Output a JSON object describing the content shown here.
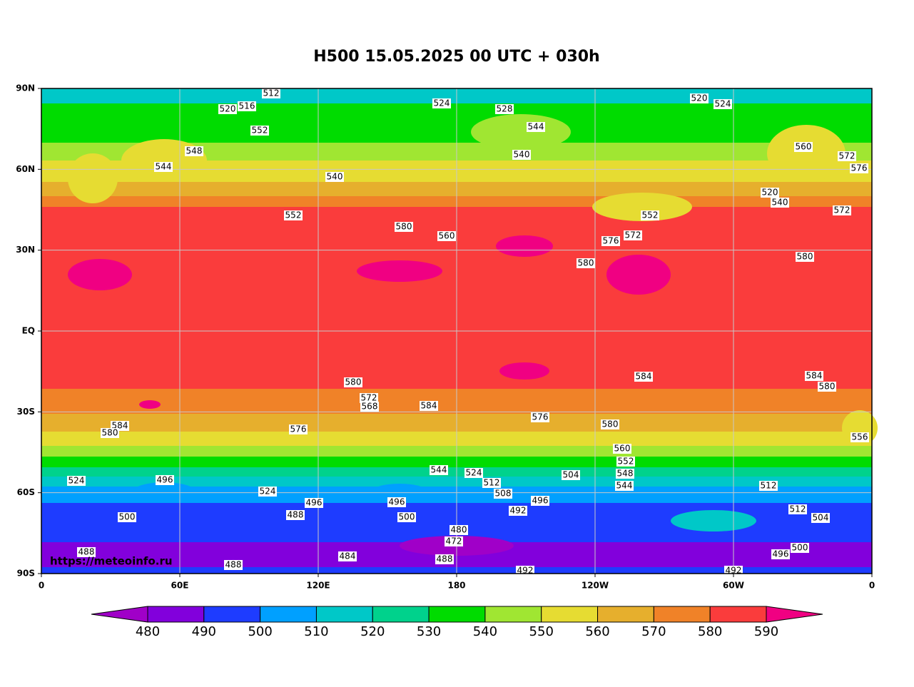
{
  "title": "H500  15.05.2025 00 UTC + 030h",
  "watermark": "https://meteoinfo.ru",
  "lon_ticks": [
    0,
    {
      "value": 60,
      "label": "60E"
    },
    {
      "value": 120,
      "label": "120E"
    },
    180,
    {
      "value": 240,
      "label": "120W"
    },
    {
      "value": 300,
      "label": "60W"
    },
    {
      "value": 360,
      "label": "0"
    }
  ],
  "lat_ticks": [
    {
      "value": 90,
      "label": "90N"
    },
    {
      "value": 60,
      "label": "60N"
    },
    {
      "value": 30,
      "label": "30N"
    },
    {
      "value": 0,
      "label": "EQ"
    },
    {
      "value": -30,
      "label": "30S"
    },
    {
      "value": -60,
      "label": "60S"
    },
    {
      "value": -90,
      "label": "90S"
    }
  ],
  "colorbar": {
    "levels": [
      480,
      490,
      500,
      510,
      520,
      530,
      540,
      550,
      560,
      570,
      580,
      590
    ],
    "colors": [
      "#a000c8",
      "#8200dc",
      "#1e3cff",
      "#00a0ff",
      "#00c8c8",
      "#00d28c",
      "#00dc00",
      "#a0e632",
      "#e6dc32",
      "#e6af2d",
      "#f08228",
      "#fa3c3c",
      "#f00082"
    ]
  },
  "contour_labels": [
    512,
    524,
    528,
    520,
    524,
    520,
    516,
    552,
    544,
    548,
    540,
    540,
    544,
    552,
    572,
    576,
    580,
    560,
    572,
    576,
    572,
    520,
    540,
    580,
    552,
    580,
    560,
    580,
    584,
    572,
    568,
    576,
    584,
    584,
    580,
    556,
    576,
    580,
    560,
    552,
    548,
    544,
    504,
    508,
    512,
    524,
    544,
    496,
    524,
    500,
    488,
    488,
    484,
    488,
    472,
    480,
    496,
    500,
    492,
    496,
    500,
    496,
    512,
    512,
    504,
    492,
    492,
    488,
    496,
    524,
    584,
    580
  ]
}
